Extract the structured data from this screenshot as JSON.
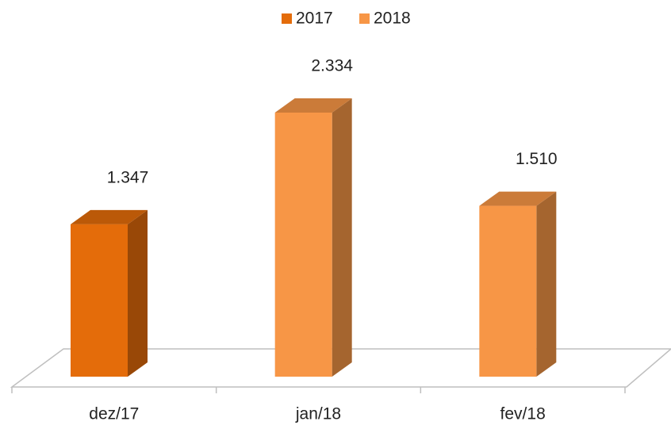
{
  "chart_data": {
    "type": "bar3d",
    "categories": [
      "dez/17",
      "jan/18",
      "fev/18"
    ],
    "series": [
      {
        "name": "2017",
        "color": "#e46c0a",
        "values": [
          1347,
          null,
          null
        ],
        "value_labels": [
          "1.347",
          null,
          null
        ]
      },
      {
        "name": "2018",
        "color": "#f79646",
        "values": [
          null,
          2334,
          1510
        ],
        "value_labels": [
          null,
          "2.334",
          "1.510"
        ]
      }
    ]
  }
}
